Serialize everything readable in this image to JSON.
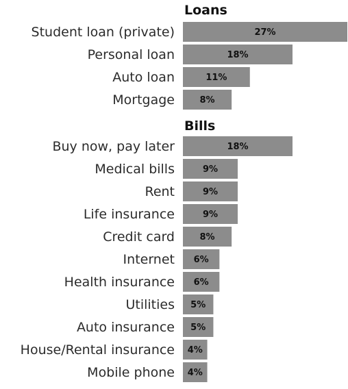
{
  "chart_data": {
    "type": "bar",
    "orientation": "horizontal",
    "xlim": [
      0,
      27
    ],
    "groups": [
      {
        "title": "Loans",
        "categories": [
          "Student loan (private)",
          "Personal loan",
          "Auto loan",
          "Mortgage"
        ],
        "values": [
          27,
          18,
          11,
          8
        ],
        "labels": [
          "27%",
          "18%",
          "11%",
          "8%"
        ]
      },
      {
        "title": "Bills",
        "categories": [
          "Buy now, pay later",
          "Medical bills",
          "Rent",
          "Life insurance",
          "Credit card",
          "Internet",
          "Health insurance",
          "Utilities",
          "Auto insurance",
          "House/Rental insurance",
          "Mobile phone"
        ],
        "values": [
          18,
          9,
          9,
          9,
          8,
          6,
          6,
          5,
          5,
          4,
          4
        ],
        "labels": [
          "18%",
          "9%",
          "9%",
          "9%",
          "8%",
          "6%",
          "6%",
          "5%",
          "5%",
          "4%",
          "4%"
        ]
      }
    ],
    "colors": {
      "bar": "#8c8c8c",
      "value_text": "#111111",
      "label_text": "#2b2b2b"
    }
  }
}
